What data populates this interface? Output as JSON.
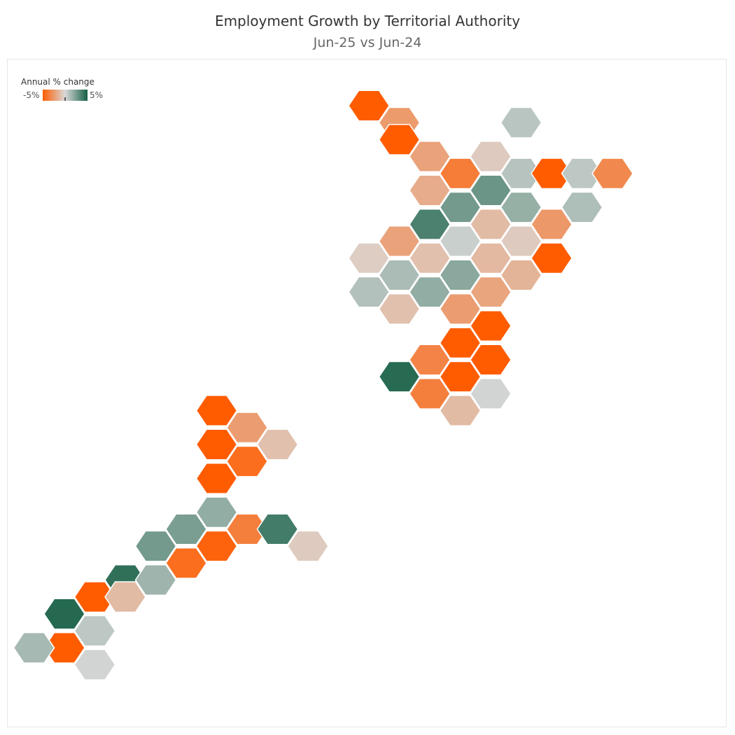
{
  "title": "Employment Growth by Territorial Authority",
  "subtitle": "Jun-25 vs Jun-24",
  "legend": {
    "title": "Annual % change",
    "min_label": "-5%",
    "max_label": "5%",
    "min_value": -5,
    "max_value": 5,
    "colors": {
      "negative": "#ff5c00",
      "neutral": "#d9d9d9",
      "positive": "#145f44"
    }
  },
  "map": {
    "type": "hex-tile-map",
    "tiles": [
      {
        "col": 0,
        "row": 0,
        "value": -5.0
      },
      {
        "col": 1,
        "row": 1,
        "value": -2.5
      },
      {
        "col": 1,
        "row": 2,
        "value": -5.0
      },
      {
        "col": 5,
        "row": 1,
        "value": 0.8
      },
      {
        "col": 2,
        "row": 3,
        "value": -2.2
      },
      {
        "col": 4,
        "row": 3,
        "value": -0.6
      },
      {
        "col": 3,
        "row": 4,
        "value": -3.7
      },
      {
        "col": 5,
        "row": 4,
        "value": 0.9
      },
      {
        "col": 6,
        "row": 4,
        "value": -5.0
      },
      {
        "col": 7,
        "row": 4,
        "value": 0.7
      },
      {
        "col": 8,
        "row": 4,
        "value": -3.2
      },
      {
        "col": 2,
        "row": 5,
        "value": -1.8
      },
      {
        "col": 4,
        "row": 5,
        "value": 2.8
      },
      {
        "col": 3,
        "row": 6,
        "value": 2.6
      },
      {
        "col": 5,
        "row": 6,
        "value": 1.7
      },
      {
        "col": 7,
        "row": 6,
        "value": 1.1
      },
      {
        "col": 6,
        "row": 7,
        "value": -2.6
      },
      {
        "col": 2,
        "row": 7,
        "value": 3.6
      },
      {
        "col": 4,
        "row": 7,
        "value": -1.2
      },
      {
        "col": 1,
        "row": 8,
        "value": -2.2
      },
      {
        "col": 3,
        "row": 8,
        "value": 0.4
      },
      {
        "col": 5,
        "row": 8,
        "value": -0.6
      },
      {
        "col": 0,
        "row": 9,
        "value": -0.5
      },
      {
        "col": 2,
        "row": 9,
        "value": -1.0
      },
      {
        "col": 4,
        "row": 9,
        "value": -1.3
      },
      {
        "col": 6,
        "row": 9,
        "value": -5.0
      },
      {
        "col": 1,
        "row": 10,
        "value": 1.2
      },
      {
        "col": 3,
        "row": 10,
        "value": 2.0
      },
      {
        "col": 5,
        "row": 10,
        "value": -1.5
      },
      {
        "col": 0,
        "row": 11,
        "value": 1.0
      },
      {
        "col": 2,
        "row": 11,
        "value": 1.8
      },
      {
        "col": 4,
        "row": 11,
        "value": -2.1
      },
      {
        "col": 1,
        "row": 12,
        "value": -1.0
      },
      {
        "col": 3,
        "row": 12,
        "value": -2.4
      },
      {
        "col": 4,
        "row": 13,
        "value": -5.0
      },
      {
        "col": 3,
        "row": 14,
        "value": -5.0
      },
      {
        "col": 2,
        "row": 15,
        "value": -3.4
      },
      {
        "col": 4,
        "row": 15,
        "value": -5.0
      },
      {
        "col": 1,
        "row": 16,
        "value": 4.5
      },
      {
        "col": 3,
        "row": 16,
        "value": -5.0
      },
      {
        "col": 2,
        "row": 17,
        "value": -3.6
      },
      {
        "col": 4,
        "row": 17,
        "value": 0.2
      },
      {
        "col": 3,
        "row": 18,
        "value": -1.2
      },
      {
        "col": -5,
        "row": 18,
        "value": -5.0
      },
      {
        "col": -4,
        "row": 19,
        "value": -2.4
      },
      {
        "col": -3,
        "row": 20,
        "value": -1.0
      },
      {
        "col": -5,
        "row": 20,
        "value": -5.0
      },
      {
        "col": -4,
        "row": 21,
        "value": -4.3
      },
      {
        "col": -5,
        "row": 22,
        "value": -5.0
      },
      {
        "col": -5,
        "row": 24,
        "value": 1.8
      },
      {
        "col": -4,
        "row": 25,
        "value": -3.6
      },
      {
        "col": -6,
        "row": 25,
        "value": 2.4
      },
      {
        "col": -3,
        "row": 25,
        "value": 3.8
      },
      {
        "col": -2,
        "row": 26,
        "value": -0.6
      },
      {
        "col": -5,
        "row": 26,
        "value": -4.7
      },
      {
        "col": -7,
        "row": 26,
        "value": 2.6
      },
      {
        "col": -6,
        "row": 27,
        "value": -4.3
      },
      {
        "col": -8,
        "row": 28,
        "value": 4.3
      },
      {
        "col": -7,
        "row": 28,
        "value": 1.5
      },
      {
        "col": -9,
        "row": 29,
        "value": -5.0
      },
      {
        "col": -8,
        "row": 29,
        "value": -1.2
      },
      {
        "col": -10,
        "row": 30,
        "value": 4.6
      },
      {
        "col": -9,
        "row": 31,
        "value": 0.7
      },
      {
        "col": -10,
        "row": 32,
        "value": -5.0
      },
      {
        "col": -11,
        "row": 32,
        "value": 1.3
      },
      {
        "col": -9,
        "row": 33,
        "value": 0.2
      }
    ]
  }
}
